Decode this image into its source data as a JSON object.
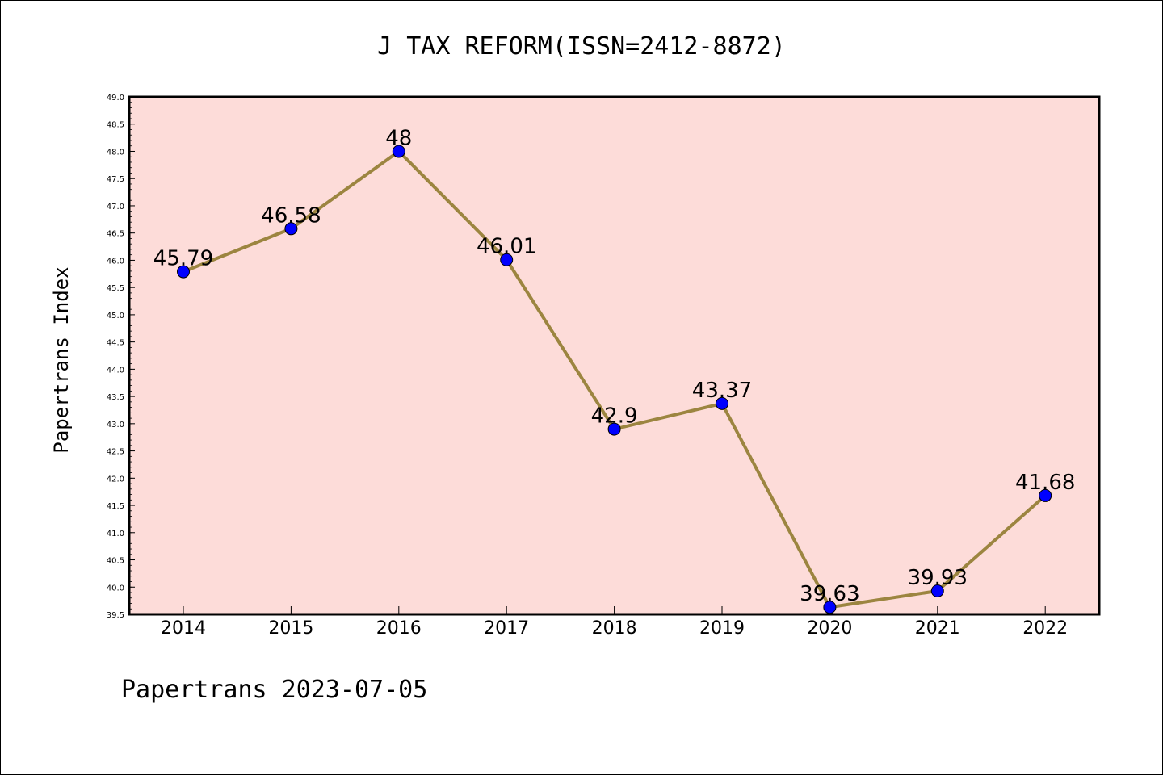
{
  "chart_data": {
    "type": "line",
    "title": "J TAX REFORM(ISSN=2412-8872)",
    "ylabel": "Papertrans Index",
    "xlabel": "",
    "footer": "Papertrans 2023-07-05",
    "categories": [
      "2014",
      "2015",
      "2016",
      "2017",
      "2018",
      "2019",
      "2020",
      "2021",
      "2022"
    ],
    "values": [
      45.79,
      46.58,
      48,
      46.01,
      42.9,
      43.37,
      39.63,
      39.93,
      41.68
    ],
    "data_labels": [
      "45.79",
      "46.58",
      "48",
      "46.01",
      "42.9",
      "43.37",
      "39.63",
      "39.93",
      "41.68"
    ],
    "ylim": [
      39.5,
      49.0
    ],
    "yticks": [
      "39.5",
      "40.0",
      "40.5",
      "41.0",
      "41.5",
      "42.0",
      "42.5",
      "43.0",
      "43.5",
      "44.0",
      "44.5",
      "45.0",
      "45.5",
      "46.0",
      "46.5",
      "47.0",
      "47.5",
      "48.0",
      "48.5",
      "49.0"
    ],
    "grid": false,
    "legend": "none",
    "colors": {
      "plot_background": "#fddcd9",
      "line": "#9c8540",
      "marker": "#0000ff",
      "axes": "#000000"
    }
  }
}
